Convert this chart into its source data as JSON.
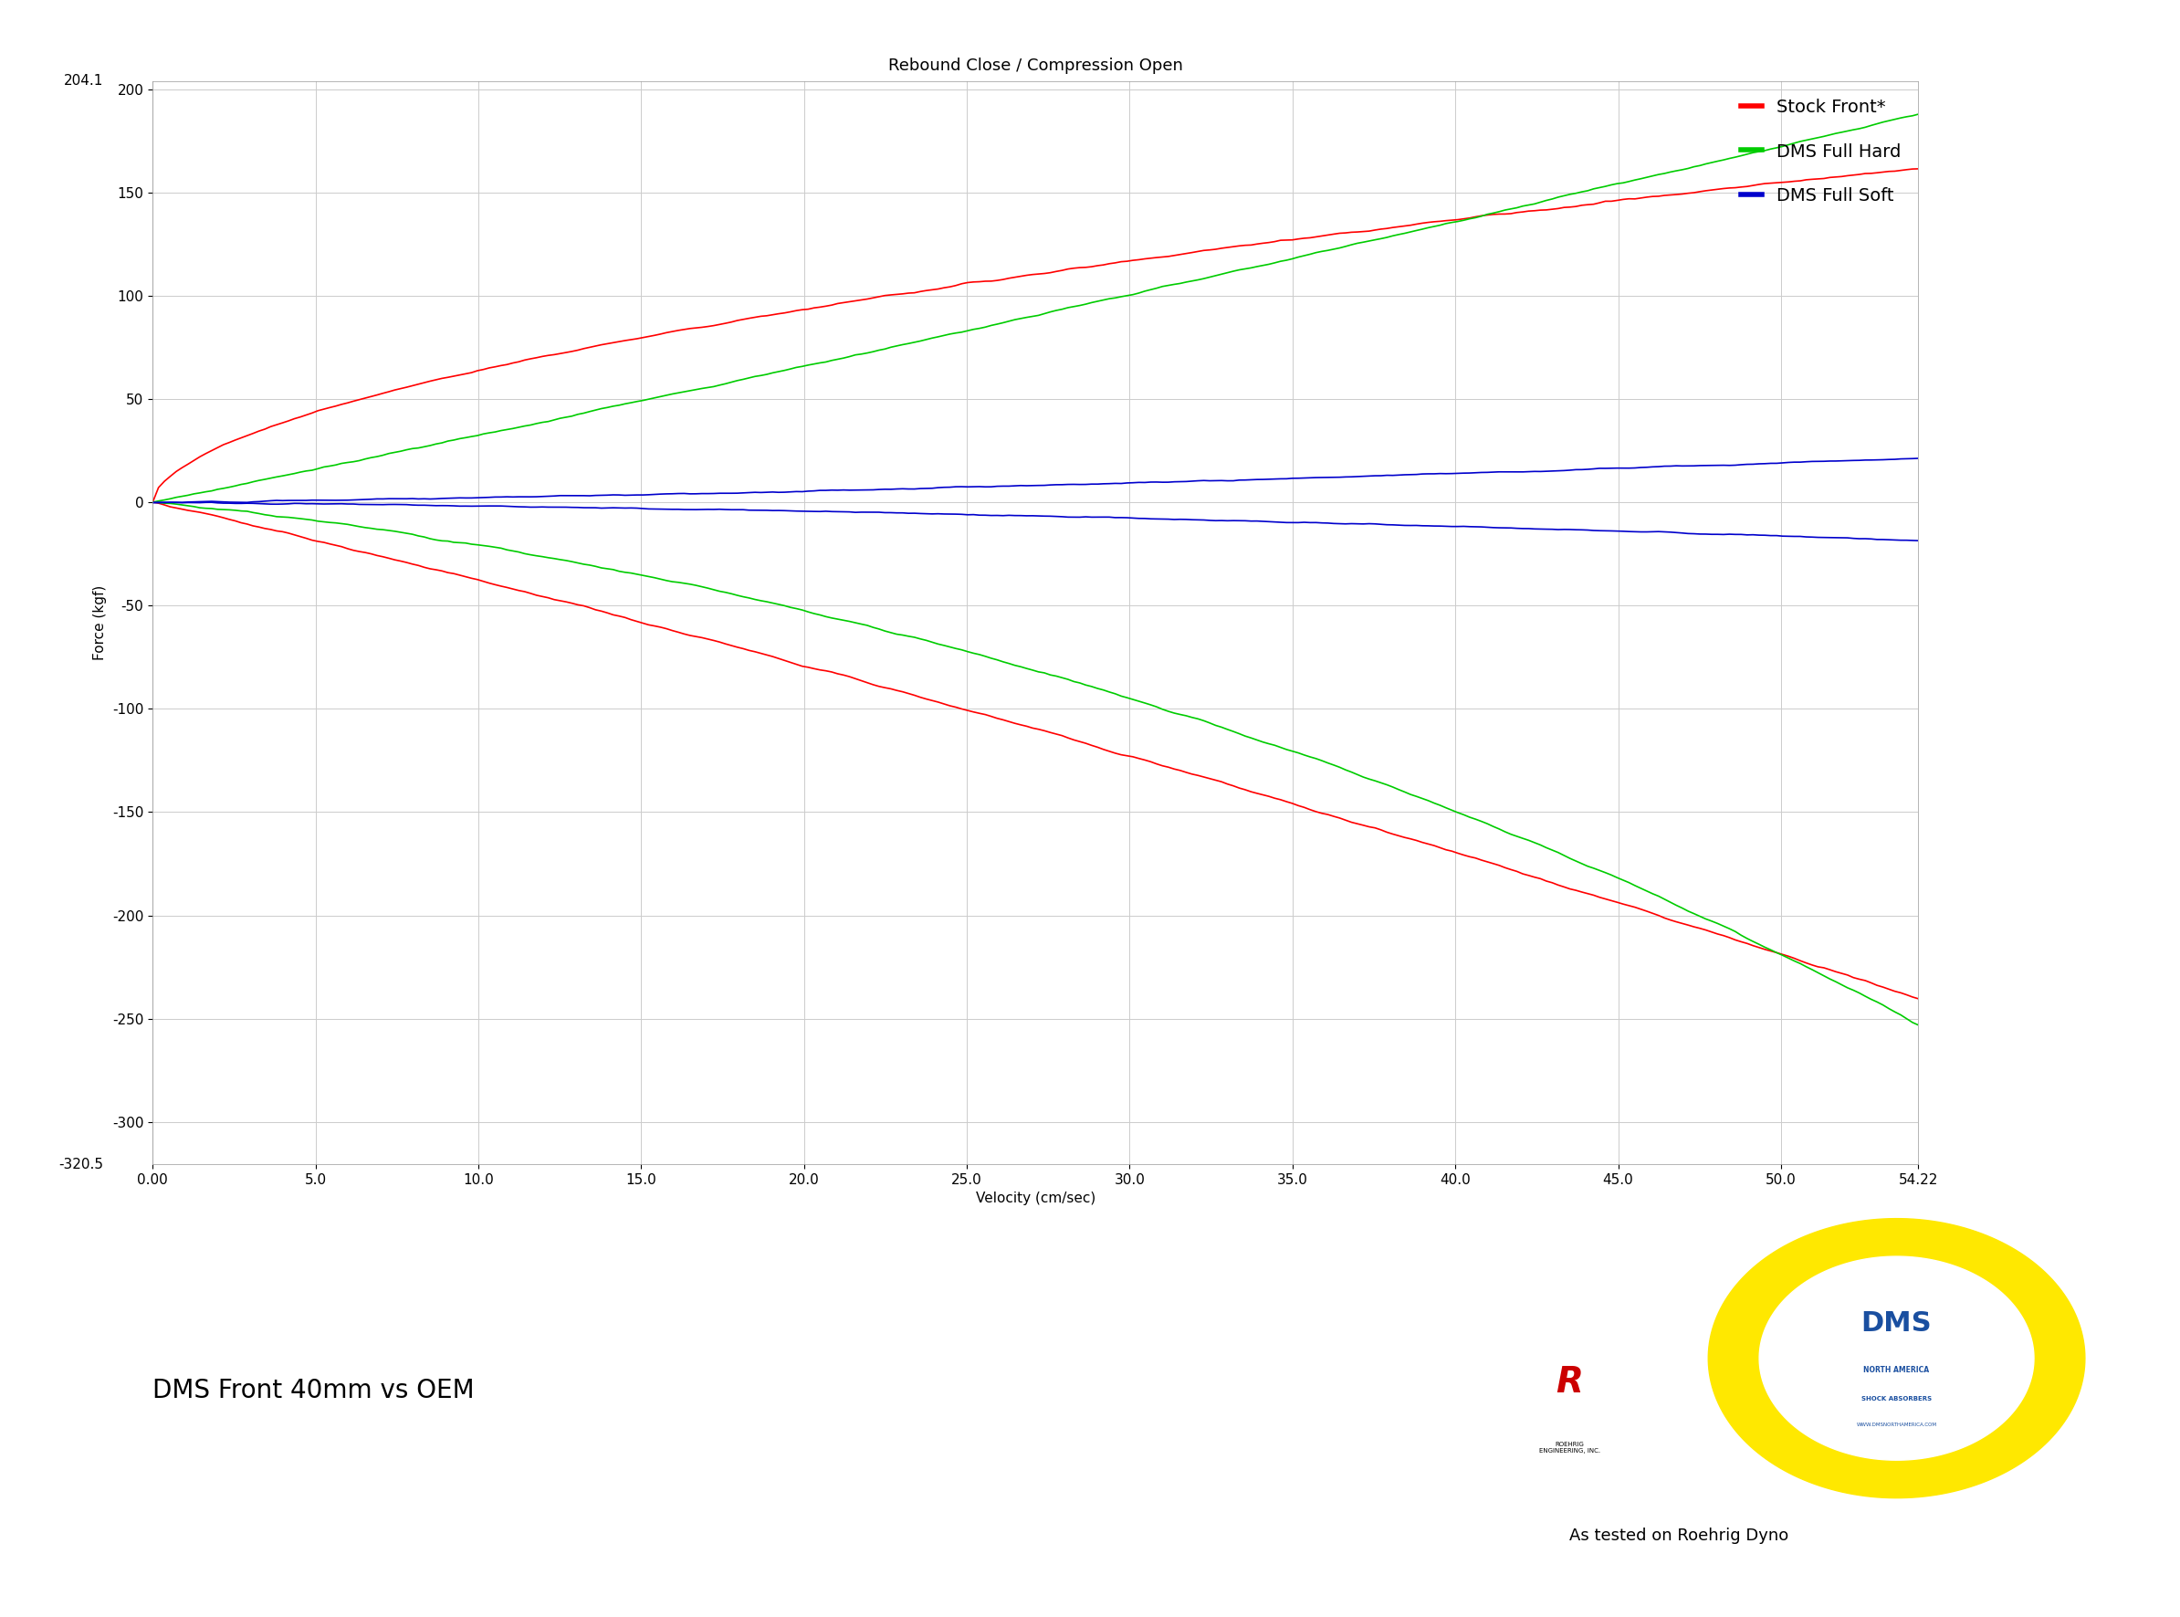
{
  "title": "Rebound Close / Compression Open",
  "xlabel": "Velocity (cm/sec)",
  "ylabel": "Force (kgf)",
  "xlim": [
    0.0,
    54.22
  ],
  "ylim": [
    -320.5,
    204.1
  ],
  "xtick_vals": [
    0.0,
    5.0,
    10.0,
    15.0,
    20.0,
    25.0,
    30.0,
    35.0,
    40.0,
    45.0,
    50.0,
    54.22
  ],
  "xtick_labels": [
    "0.00",
    "5.0",
    "10.0",
    "15.0",
    "20.0",
    "25.0",
    "30.0",
    "35.0",
    "40.0",
    "45.0",
    "50.0",
    "54.22"
  ],
  "ytick_main": [
    -300,
    -250,
    -200,
    -150,
    -100,
    -50,
    0,
    50,
    100,
    150,
    200
  ],
  "ytick_extra_top": 204.1,
  "ytick_extra_bottom": -320.5,
  "series_labels": [
    "Stock Front*",
    "DMS Full Hard",
    "DMS Full Soft"
  ],
  "series_colors": [
    "#ff0000",
    "#00cc00",
    "#0000cc"
  ],
  "subtitle_text": "DMS Front 40mm vs OEM",
  "footer_text": "As tested on Roehrig Dyno",
  "bg_color": "#ffffff",
  "grid_color": "#cccccc",
  "title_fontsize": 13,
  "axis_label_fontsize": 11,
  "tick_fontsize": 11,
  "legend_fontsize": 14,
  "subtitle_fontsize": 20,
  "footer_fontsize": 13,
  "linewidth": 1.2
}
